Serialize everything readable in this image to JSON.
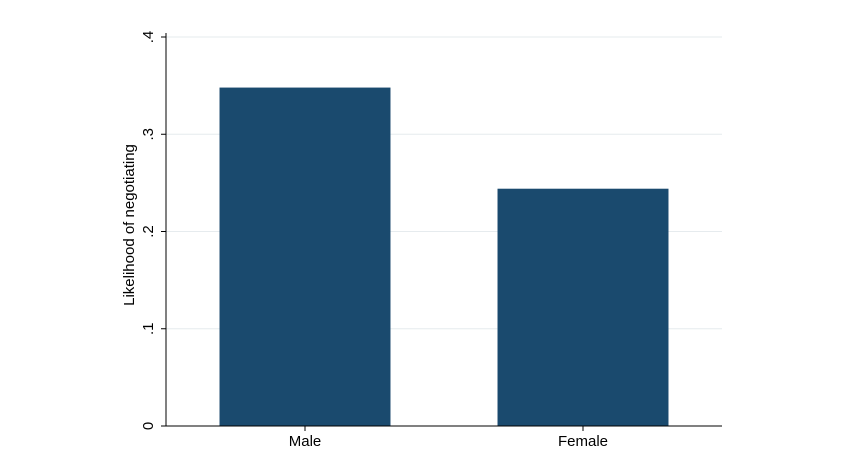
{
  "chart_data": {
    "type": "bar",
    "categories": [
      "Male",
      "Female"
    ],
    "values": [
      0.348,
      0.244
    ],
    "title": "",
    "xlabel": "",
    "ylabel": "Likelihood of negotiating",
    "ylim": [
      0,
      0.4
    ],
    "yticks": [
      0,
      0.1,
      0.2,
      0.3,
      0.4
    ],
    "ytick_labels": [
      "0",
      ".1",
      ".2",
      ".3",
      ".4"
    ],
    "grid": true,
    "bar_color": "#1a4a6e",
    "grid_color": "#e6ebee"
  }
}
